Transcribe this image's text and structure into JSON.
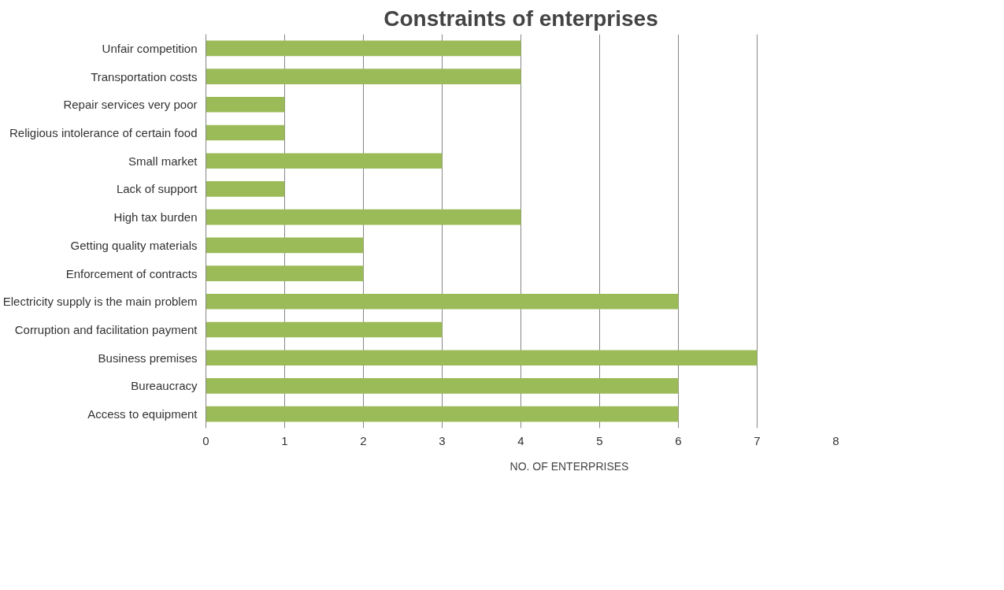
{
  "chart_data": {
    "type": "bar",
    "orientation": "horizontal",
    "title": "Constraints of enterprises",
    "categories": [
      "Unfair competition",
      "Transportation costs",
      "Repair services very poor",
      "Religious intolerance of certain food",
      "Small market",
      "Lack of support",
      "High tax burden",
      "Getting quality materials",
      "Enforcement of contracts",
      "Electricity supply is the main problem",
      "Corruption and facilitation payment",
      "Business premises",
      "Bureaucracy",
      "Access to equipment"
    ],
    "series": [
      {
        "name": "NO. OF ENTERPRISES",
        "color": "#9bbb59",
        "values": [
          4,
          4,
          1,
          1,
          3,
          1,
          4,
          2,
          2,
          6,
          3,
          7,
          6,
          6
        ]
      }
    ],
    "xlim": [
      0,
      8
    ],
    "xticks": [
      0,
      1,
      2,
      3,
      4,
      5,
      6,
      7,
      8
    ],
    "grid": "x",
    "legend": "bottom"
  }
}
